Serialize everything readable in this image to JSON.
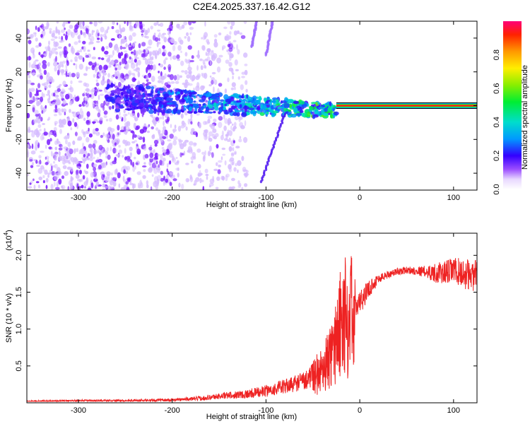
{
  "title": "C2E4.2025.337.16.42.G12",
  "colors": {
    "spectrogram_violet": "#7a00ff",
    "spectrogram_light": "#d9c2ff",
    "snr_line": "#ee2222"
  },
  "chart_data": [
    {
      "type": "heatmap",
      "name": "spectrogram",
      "xlabel": "Height of straight line (km)",
      "ylabel": "Frequency (Hz)",
      "xlim": [
        -355,
        125
      ],
      "ylim": [
        -50,
        50
      ],
      "xticks": [
        -300,
        -200,
        -100,
        0,
        100
      ],
      "xtick_labels": [
        "-300",
        "-200",
        "-100",
        "0",
        "100"
      ],
      "yticks": [
        -40,
        -20,
        0,
        20,
        40
      ],
      "ytick_labels": [
        "-40",
        "-20",
        "0",
        "20",
        "40"
      ],
      "colorbar": {
        "label": "Normalized spectral amplitude",
        "range": [
          0,
          1
        ],
        "ticks": [
          0.0,
          0.2,
          0.4,
          0.6,
          0.8
        ],
        "tick_labels": [
          "0.0",
          "0.2",
          "0.4",
          "0.6",
          "0.8"
        ]
      },
      "features": [
        {
          "kind": "scatter_cloud",
          "x_range": [
            -355,
            -200
          ],
          "freq_range": [
            -50,
            50
          ],
          "amplitude": 0.1
        },
        {
          "kind": "sparse_cloud",
          "x_range": [
            -200,
            -120
          ],
          "freq_range": [
            -50,
            50
          ],
          "amplitude": 0.04
        },
        {
          "kind": "band",
          "x_range": [
            -270,
            -25
          ],
          "center_freq": [
            5,
            -3
          ],
          "half_width": [
            8,
            4
          ],
          "amplitude": 0.45
        },
        {
          "kind": "streak",
          "from": [
            -105,
            -45
          ],
          "to": [
            -80,
            -5
          ],
          "amplitude": 0.2
        },
        {
          "kind": "streak",
          "from": [
            -115,
            35
          ],
          "to": [
            -110,
            50
          ],
          "amplitude": 0.1
        },
        {
          "kind": "streak",
          "from": [
            -100,
            30
          ],
          "to": [
            -93,
            50
          ],
          "amplitude": 0.05
        },
        {
          "kind": "carrier_line",
          "x_range": [
            -25,
            125
          ],
          "freq": 0,
          "amplitude": 0.95
        }
      ]
    },
    {
      "type": "line",
      "name": "snr",
      "xlabel": "Height of straight line (km)",
      "ylabel": "SNR (10 * v/v)",
      "y_multiplier": "(x10",
      "y_multiplier_exp": "4",
      "y_multiplier_close": ")",
      "xlim": [
        -355,
        125
      ],
      "ylim": [
        0.0,
        2.3
      ],
      "xticks": [
        -300,
        -200,
        -100,
        0,
        100
      ],
      "xtick_labels": [
        "-300",
        "-200",
        "-100",
        "0",
        "100"
      ],
      "yticks": [
        0.5,
        1.0,
        1.5,
        2.0
      ],
      "ytick_labels": [
        "0.5",
        "1.0",
        "1.5",
        "2.0"
      ],
      "series": [
        {
          "x": [
            -355,
            -300,
            -250,
            -200,
            -170,
            -150,
            -120,
            -100,
            -80,
            -60,
            -50,
            -40,
            -30,
            -25,
            -20,
            -15,
            -10,
            -5,
            0,
            5,
            10,
            15,
            20,
            30,
            40,
            50,
            60,
            70,
            80,
            90,
            100,
            110,
            125
          ],
          "y": [
            0.02,
            0.03,
            0.03,
            0.04,
            0.06,
            0.09,
            0.12,
            0.16,
            0.22,
            0.3,
            0.38,
            0.5,
            0.72,
            0.95,
            1.2,
            1.32,
            1.3,
            1.3,
            1.35,
            1.45,
            1.55,
            1.62,
            1.68,
            1.74,
            1.78,
            1.8,
            1.79,
            1.78,
            1.76,
            1.76,
            1.8,
            1.75,
            1.72
          ],
          "noise": [
            0.01,
            0.012,
            0.012,
            0.02,
            0.03,
            0.04,
            0.06,
            0.08,
            0.1,
            0.13,
            0.16,
            0.22,
            0.3,
            0.4,
            0.45,
            0.35,
            0.28,
            0.2,
            0.16,
            0.14,
            0.12,
            0.1,
            0.07,
            0.05,
            0.05,
            0.05,
            0.06,
            0.08,
            0.13,
            0.16,
            0.18,
            0.2,
            0.22
          ]
        }
      ]
    }
  ]
}
